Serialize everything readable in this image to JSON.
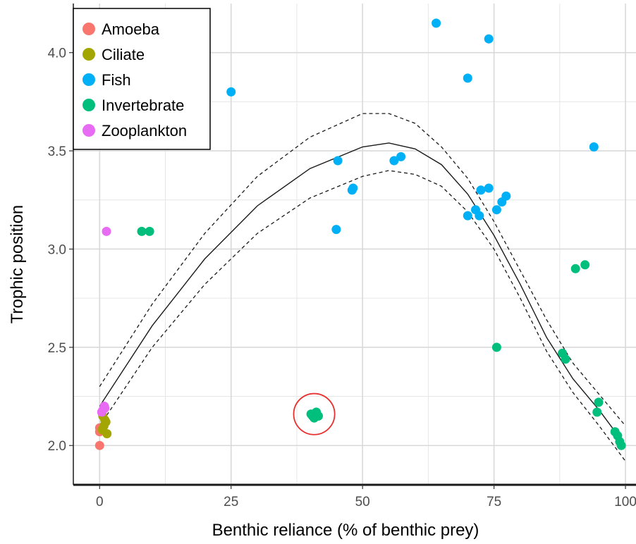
{
  "chart_data": {
    "type": "scatter",
    "xlabel": "Benthic reliance (% of benthic prey)",
    "ylabel": "Trophic position",
    "xlim": [
      -5,
      102
    ],
    "ylim": [
      1.8,
      4.25
    ],
    "x_ticks": [
      0,
      25,
      50,
      75,
      100
    ],
    "y_ticks": [
      2.0,
      2.5,
      3.0,
      3.5,
      4.0
    ],
    "x_tick_labels": [
      "0",
      "25",
      "50",
      "75",
      "100"
    ],
    "y_tick_labels": [
      "2.0",
      "2.5",
      "3.0",
      "3.5",
      "4.0"
    ],
    "grid": true,
    "legend_position": "top-left",
    "series": [
      {
        "name": "Amoeba",
        "color": "#f8766d",
        "points": [
          [
            0,
            2.0
          ],
          [
            0,
            2.07
          ],
          [
            0,
            2.09
          ],
          [
            0.3,
            2.08
          ]
        ]
      },
      {
        "name": "Ciliate",
        "color": "#a3a500",
        "points": [
          [
            0.5,
            2.08
          ],
          [
            0.8,
            2.1
          ],
          [
            1.2,
            2.12
          ],
          [
            0.6,
            2.15
          ],
          [
            1.0,
            2.13
          ],
          [
            1.4,
            2.06
          ]
        ]
      },
      {
        "name": "Fish",
        "color": "#00b0f6",
        "points": [
          [
            25,
            3.8
          ],
          [
            45.3,
            3.45
          ],
          [
            48,
            3.3
          ],
          [
            48.2,
            3.31
          ],
          [
            45,
            3.1
          ],
          [
            56,
            3.45
          ],
          [
            57.3,
            3.47
          ],
          [
            64,
            4.15
          ],
          [
            70,
            3.87
          ],
          [
            74,
            4.07
          ],
          [
            70,
            3.17
          ],
          [
            71.5,
            3.2
          ],
          [
            72.2,
            3.17
          ],
          [
            72.5,
            3.3
          ],
          [
            74,
            3.31
          ],
          [
            75.5,
            3.2
          ],
          [
            76.5,
            3.24
          ],
          [
            77.3,
            3.27
          ],
          [
            94,
            3.52
          ]
        ]
      },
      {
        "name": "Invertebrate",
        "color": "#00bf7d",
        "points": [
          [
            8,
            3.09
          ],
          [
            9.5,
            3.09
          ],
          [
            40.2,
            2.16
          ],
          [
            40.8,
            2.14
          ],
          [
            41.2,
            2.17
          ],
          [
            41.6,
            2.15
          ],
          [
            40.5,
            2.15
          ],
          [
            75.5,
            2.5
          ],
          [
            88,
            2.47
          ],
          [
            88.6,
            2.44
          ],
          [
            90.5,
            2.9
          ],
          [
            92.3,
            2.92
          ],
          [
            94.6,
            2.17
          ],
          [
            94.9,
            2.22
          ],
          [
            98,
            2.07
          ],
          [
            98.5,
            2.05
          ],
          [
            98.9,
            2.02
          ],
          [
            99.2,
            2.0
          ]
        ]
      },
      {
        "name": "Zooplankton",
        "color": "#e76bf3",
        "points": [
          [
            1.3,
            3.09
          ],
          [
            0.6,
            2.18
          ],
          [
            0.9,
            2.2
          ],
          [
            0.4,
            2.17
          ],
          [
            1.0,
            2.19
          ]
        ]
      }
    ],
    "fit_line": {
      "points": [
        [
          0,
          2.2
        ],
        [
          10,
          2.61
        ],
        [
          20,
          2.95
        ],
        [
          30,
          3.22
        ],
        [
          40,
          3.41
        ],
        [
          50,
          3.52
        ],
        [
          55,
          3.54
        ],
        [
          60,
          3.51
        ],
        [
          65,
          3.43
        ],
        [
          70,
          3.28
        ],
        [
          75,
          3.07
        ],
        [
          80,
          2.82
        ],
        [
          85,
          2.55
        ],
        [
          90,
          2.34
        ],
        [
          95,
          2.18
        ],
        [
          100,
          2.0
        ]
      ],
      "style": "solid"
    },
    "fit_upper": {
      "points": [
        [
          0,
          2.3
        ],
        [
          10,
          2.72
        ],
        [
          20,
          3.08
        ],
        [
          30,
          3.37
        ],
        [
          40,
          3.57
        ],
        [
          50,
          3.69
        ],
        [
          55,
          3.69
        ],
        [
          60,
          3.64
        ],
        [
          65,
          3.52
        ],
        [
          70,
          3.36
        ],
        [
          75,
          3.14
        ],
        [
          80,
          2.89
        ],
        [
          85,
          2.64
        ],
        [
          90,
          2.42
        ],
        [
          95,
          2.26
        ],
        [
          100,
          2.1
        ]
      ],
      "style": "dashed"
    },
    "fit_lower": {
      "points": [
        [
          0,
          2.1
        ],
        [
          10,
          2.5
        ],
        [
          20,
          2.82
        ],
        [
          30,
          3.08
        ],
        [
          40,
          3.26
        ],
        [
          50,
          3.37
        ],
        [
          55,
          3.4
        ],
        [
          60,
          3.38
        ],
        [
          65,
          3.32
        ],
        [
          70,
          3.19
        ],
        [
          75,
          3.0
        ],
        [
          80,
          2.75
        ],
        [
          85,
          2.48
        ],
        [
          90,
          2.27
        ],
        [
          95,
          2.1
        ],
        [
          100,
          1.92
        ]
      ],
      "style": "dashed"
    },
    "highlight_circle": {
      "center": [
        40.8,
        2.16
      ],
      "radius_data_x": 3.9,
      "color": "#e8302e"
    }
  }
}
